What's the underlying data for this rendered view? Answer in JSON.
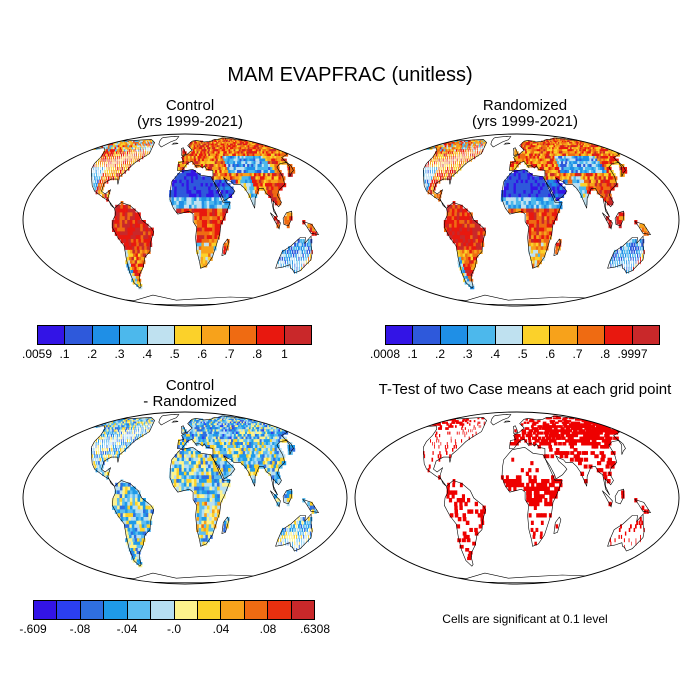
{
  "title": "MAM EVAPFRAC (unitless)",
  "panels": {
    "control": {
      "title_line1": "Control",
      "title_line2": "(yrs 1999-2021)"
    },
    "randomized": {
      "title_line1": "Randomized",
      "title_line2": "(yrs 1999-2021)"
    },
    "difference": {
      "title_line1": "Control",
      "title_line2": "- Randomized"
    },
    "ttest": {
      "title_line1": "T-Test of two Case means at each grid point"
    }
  },
  "colorbar_control": {
    "labels": [
      ".0059",
      ".1",
      ".2",
      ".3",
      ".4",
      ".5",
      ".6",
      ".7",
      ".8",
      "1"
    ],
    "colors": [
      "#3314e6",
      "#2e59db",
      "#1f8fe6",
      "#4cb8ec",
      "#bfe1f0",
      "#fbd12a",
      "#f7a21b",
      "#ef6b12",
      "#e8180f",
      "#c9282a"
    ]
  },
  "colorbar_randomized": {
    "labels": [
      ".0008",
      ".1",
      ".2",
      ".3",
      ".4",
      ".5",
      ".6",
      ".7",
      ".8",
      ".9997"
    ],
    "colors": [
      "#3314e6",
      "#2e59db",
      "#1f8fe6",
      "#4cb8ec",
      "#bfe1f0",
      "#fbd12a",
      "#f7a21b",
      "#ef6b12",
      "#e8180f",
      "#c9282a"
    ]
  },
  "colorbar_difference": {
    "labels": [
      "-.609",
      "-.08",
      "-.04",
      "-.0",
      ".04",
      ".08",
      ".6308"
    ],
    "colors": [
      "#3314e6",
      "#2b3ff0",
      "#2f6fe0",
      "#1f9ae8",
      "#5cbdf0",
      "#b6dff2",
      "#fdf38c",
      "#fbd12a",
      "#f7a21b",
      "#ef6b12",
      "#e8300f",
      "#c9282a"
    ]
  },
  "significance_note": "Cells are significant at 0.1 level",
  "colors": {
    "significant": "#ee0000",
    "coast": "#000000",
    "frame": "#000000"
  }
}
